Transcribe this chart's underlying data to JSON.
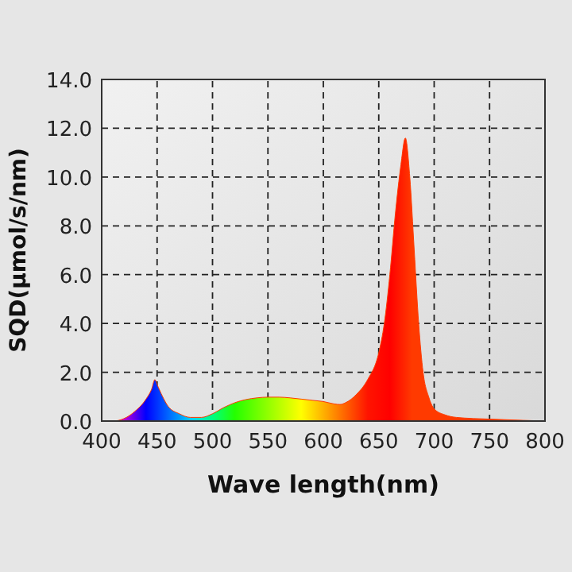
{
  "chart_data": {
    "type": "area",
    "xlabel": "Wave length(nm)",
    "ylabel": "SQD(μmol/s/nm)",
    "x": [
      400,
      410,
      420,
      430,
      440,
      445,
      448,
      450,
      455,
      460,
      470,
      480,
      490,
      500,
      510,
      520,
      530,
      540,
      550,
      560,
      570,
      580,
      590,
      600,
      610,
      615,
      620,
      630,
      640,
      650,
      655,
      660,
      665,
      670,
      674,
      678,
      682,
      686,
      690,
      695,
      700,
      710,
      720,
      750,
      780,
      800
    ],
    "series": [
      {
        "color": "#ff3a00",
        "values": [
          0,
          0,
          0.1,
          0.4,
          0.9,
          1.3,
          1.7,
          1.5,
          1.0,
          0.6,
          0.3,
          0.15,
          0.15,
          0.3,
          0.55,
          0.75,
          0.88,
          0.95,
          0.98,
          0.98,
          0.95,
          0.9,
          0.85,
          0.8,
          0.7,
          0.68,
          0.75,
          1.1,
          1.7,
          2.8,
          4,
          6,
          8.5,
          10.5,
          11.6,
          10,
          7,
          4,
          2,
          1.0,
          0.5,
          0.25,
          0.15,
          0.08,
          0.03,
          0
        ]
      }
    ],
    "xlim": [
      400,
      800
    ],
    "xticks": [
      400,
      450,
      500,
      550,
      600,
      650,
      700,
      750,
      800
    ],
    "ylim": [
      0,
      14
    ],
    "yticks": [
      {
        "value": 0,
        "label": "0.0"
      },
      {
        "value": 2,
        "label": "2.0"
      },
      {
        "value": 4,
        "label": "4.0"
      },
      {
        "value": 6,
        "label": "6.0"
      },
      {
        "value": 8,
        "label": "8.0"
      },
      {
        "value": 10,
        "label": "10.0"
      },
      {
        "value": 12,
        "label": "12.0"
      },
      {
        "value": 14,
        "label": "14.0"
      }
    ],
    "grid": true,
    "line_style": "dashed"
  }
}
